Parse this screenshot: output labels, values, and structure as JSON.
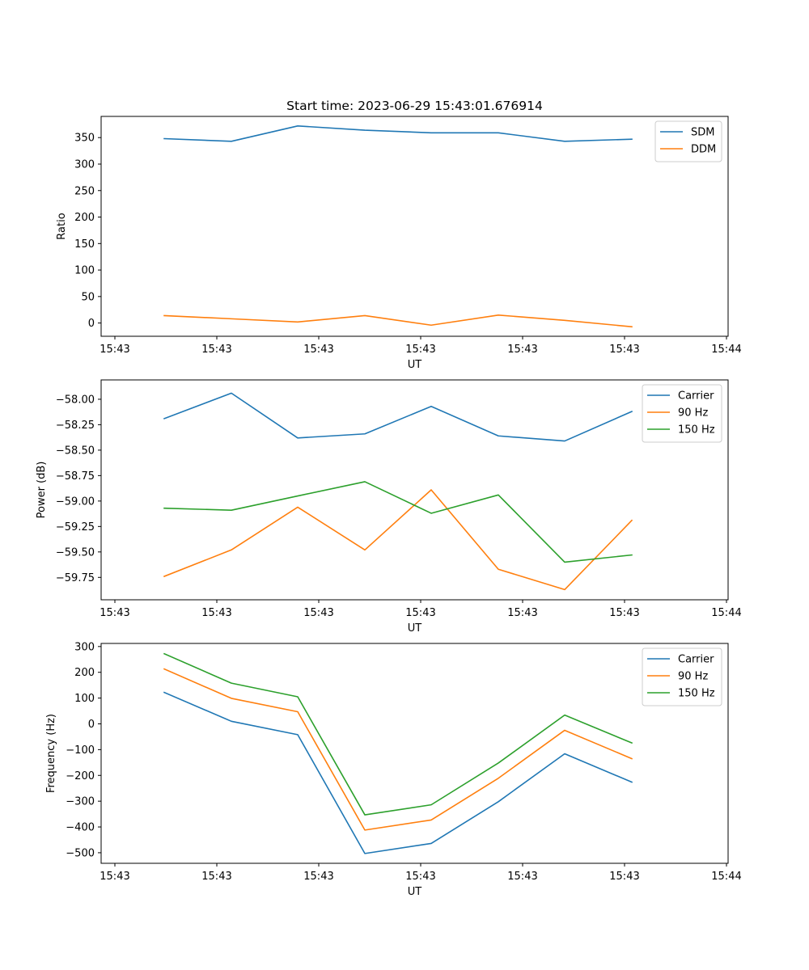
{
  "title": "Start time: 2023-06-29 15:43:01.676914",
  "chart_data": [
    {
      "type": "line",
      "title": "Start time: 2023-06-29 15:43:01.676914",
      "xlabel": "UT",
      "ylabel": "Ratio",
      "xtick_labels": [
        "15:43",
        "15:43",
        "15:43",
        "15:43",
        "15:43",
        "15:43",
        "15:44"
      ],
      "ylim": [
        -25,
        390
      ],
      "yticks": [
        0,
        50,
        100,
        150,
        200,
        250,
        300,
        350
      ],
      "ytick_labels": [
        "0",
        "50",
        "100",
        "150",
        "200",
        "250",
        "300",
        "350"
      ],
      "grid": false,
      "legend_position": "top-right",
      "colors": [
        "#1f77b4",
        "#ff7f0e"
      ],
      "series": [
        {
          "name": "SDM",
          "values": [
            348,
            343,
            372,
            364,
            359,
            359,
            343,
            347
          ]
        },
        {
          "name": "DDM",
          "values": [
            14,
            8,
            2,
            14,
            -4,
            15,
            5,
            -7
          ]
        }
      ]
    },
    {
      "type": "line",
      "xlabel": "UT",
      "ylabel": "Power (dB)",
      "xtick_labels": [
        "15:43",
        "15:43",
        "15:43",
        "15:43",
        "15:43",
        "15:43",
        "15:44"
      ],
      "ylim": [
        -59.97,
        -57.81
      ],
      "yticks": [
        -59.75,
        -59.5,
        -59.25,
        -59.0,
        -58.75,
        -58.5,
        -58.25,
        -58.0
      ],
      "ytick_labels": [
        "−59.75",
        "−59.50",
        "−59.25",
        "−59.00",
        "−58.75",
        "−58.50",
        "−58.25",
        "−58.00"
      ],
      "grid": false,
      "legend_position": "top-right",
      "colors": [
        "#1f77b4",
        "#ff7f0e",
        "#2ca02c"
      ],
      "series": [
        {
          "name": "Carrier",
          "values": [
            -58.19,
            -57.94,
            -58.38,
            -58.34,
            -58.07,
            -58.36,
            -58.41,
            -58.12
          ]
        },
        {
          "name": "90 Hz",
          "values": [
            -59.74,
            -59.48,
            -59.06,
            -59.48,
            -58.89,
            -59.67,
            -59.87,
            -59.19
          ]
        },
        {
          "name": "150 Hz",
          "values": [
            -59.07,
            -59.09,
            -58.95,
            -58.81,
            -59.12,
            -58.94,
            -59.6,
            -59.53
          ]
        }
      ]
    },
    {
      "type": "line",
      "xlabel": "UT",
      "ylabel": "Frequency (Hz)",
      "xtick_labels": [
        "15:43",
        "15:43",
        "15:43",
        "15:43",
        "15:43",
        "15:43",
        "15:44"
      ],
      "ylim": [
        -541,
        312
      ],
      "yticks": [
        -500,
        -400,
        -300,
        -200,
        -100,
        0,
        100,
        200,
        300
      ],
      "ytick_labels": [
        "−500",
        "−400",
        "−300",
        "−200",
        "−100",
        "0",
        "100",
        "200",
        "300"
      ],
      "grid": false,
      "legend_position": "top-right",
      "colors": [
        "#1f77b4",
        "#ff7f0e",
        "#2ca02c"
      ],
      "series": [
        {
          "name": "Carrier",
          "values": [
            122,
            10,
            -42,
            -503,
            -464,
            -302,
            -116,
            -226
          ]
        },
        {
          "name": "90 Hz",
          "values": [
            213,
            99,
            47,
            -412,
            -373,
            -211,
            -25,
            -135
          ]
        },
        {
          "name": "150 Hz",
          "values": [
            272,
            158,
            105,
            -353,
            -314,
            -152,
            34,
            -74
          ]
        }
      ]
    }
  ]
}
